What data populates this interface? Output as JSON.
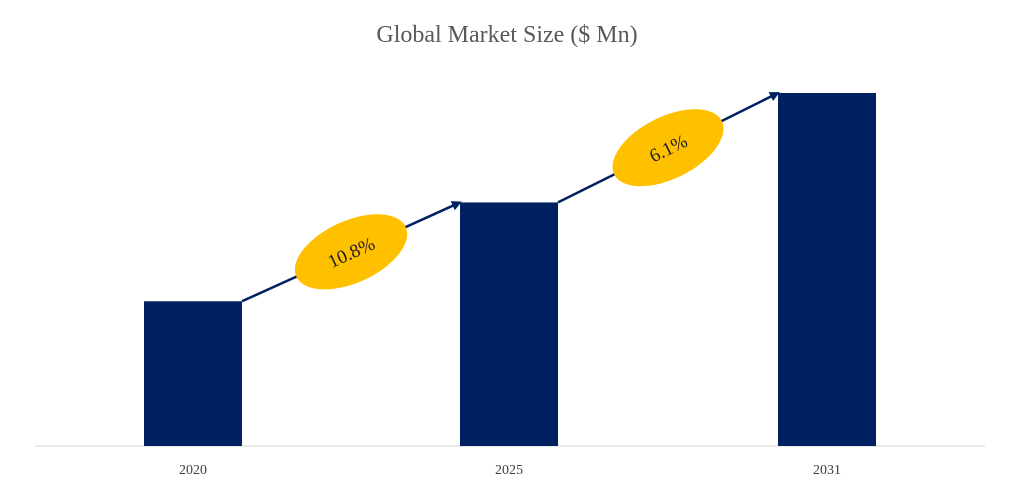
{
  "chart_data": {
    "type": "bar",
    "title": "Global Market Size ($ Mn)",
    "xlabel": "",
    "ylabel": "",
    "categories": [
      "2020",
      "2025",
      "2031"
    ],
    "values": [
      41,
      69,
      100
    ],
    "ylim": [
      0,
      100
    ],
    "grid": false,
    "legend": "none",
    "annotations": [
      {
        "text": "10.8%",
        "from": "2020",
        "to": "2025"
      },
      {
        "text": "6.1%",
        "from": "2025",
        "to": "2031"
      }
    ],
    "colors": {
      "bar": "#002060",
      "arrow": "#002060",
      "badge": "#ffc000",
      "axis": "#d9d9d9"
    }
  }
}
